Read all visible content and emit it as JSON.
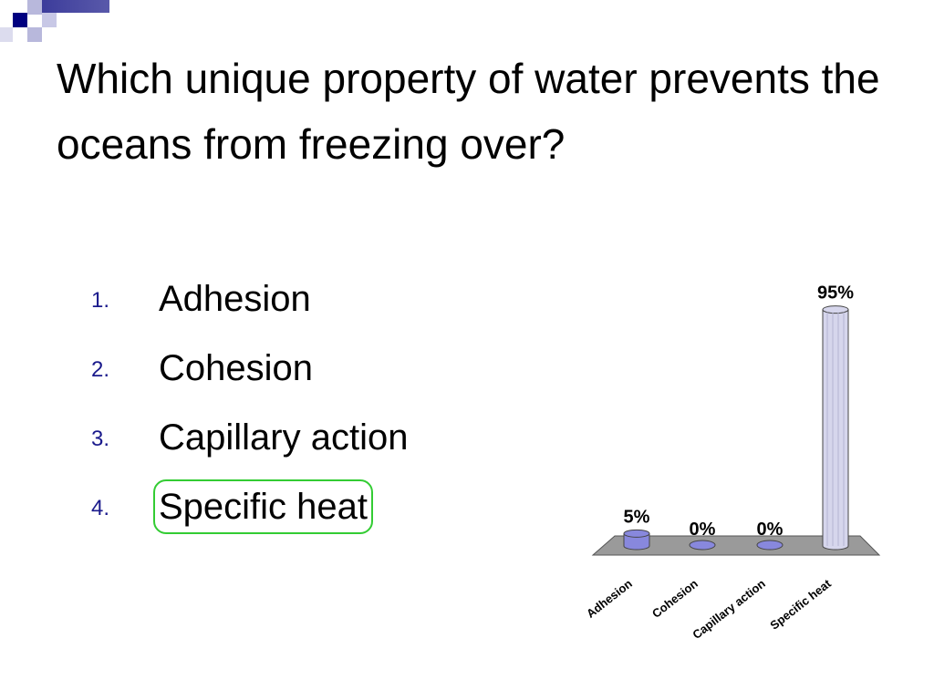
{
  "slide": {
    "title": "Which unique property of water prevents the oceans from freezing over?",
    "options": [
      {
        "number": "1.",
        "label": "Adhesion",
        "correct": false
      },
      {
        "number": "2.",
        "label": "Cohesion",
        "correct": false
      },
      {
        "number": "3.",
        "label": "Capillary action",
        "correct": false
      },
      {
        "number": "4.",
        "label": "Specific heat",
        "correct": true
      }
    ]
  },
  "colors": {
    "accent_navy": "#1a1a8c",
    "correct_outline": "#33cc33",
    "bar_fill": "#8888dd",
    "tall_bar_fill": "#d6d6ec",
    "floor": "#9a9a9a"
  },
  "chart_data": {
    "type": "bar",
    "categories": [
      "Adhesion",
      "Cohesion",
      "Capillary action",
      "Specific heat"
    ],
    "values": [
      5,
      0,
      0,
      95
    ],
    "data_labels": [
      "5%",
      "0%",
      "0%",
      "95%"
    ],
    "ylim": [
      0,
      100
    ],
    "grid": false,
    "legend": "none",
    "style": "3d-cylinder"
  }
}
